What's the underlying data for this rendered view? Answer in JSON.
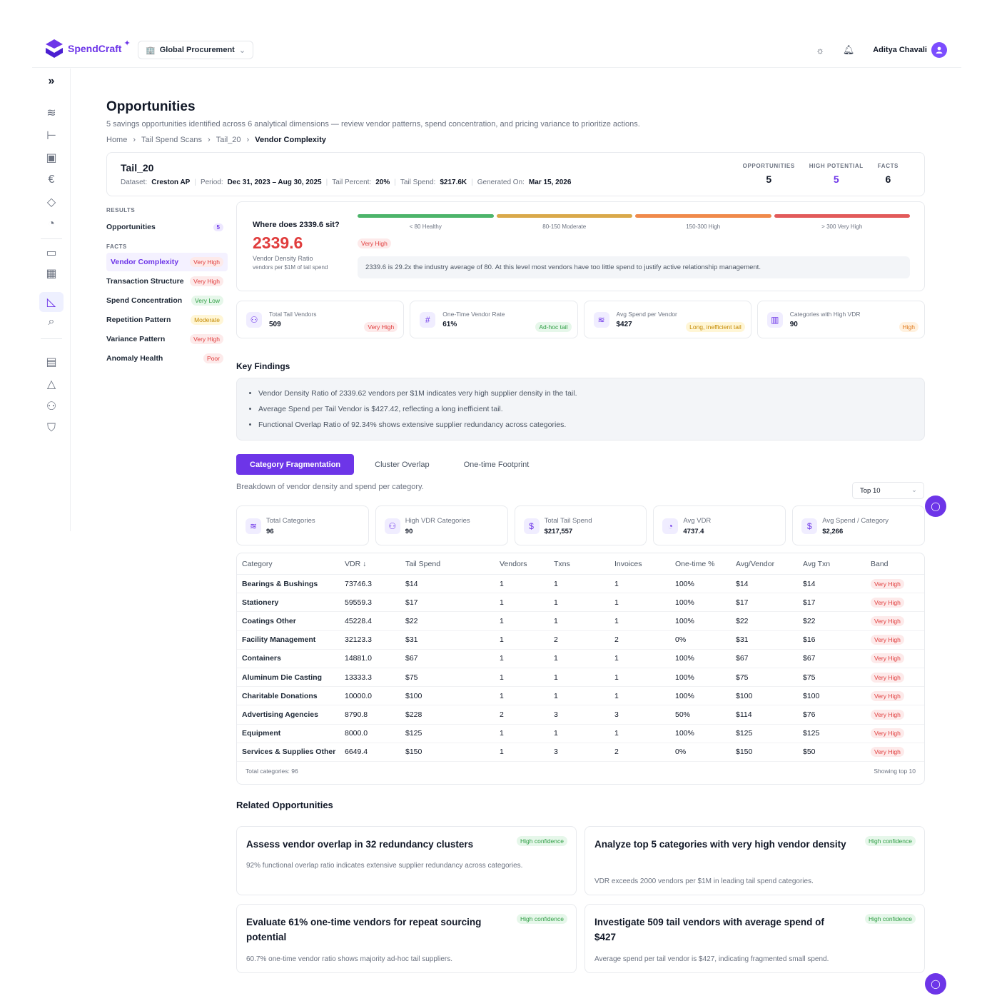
{
  "app": {
    "name": "SpendCraft",
    "workspace": "Global Procurement",
    "user": "Aditya Chavali"
  },
  "page": {
    "title": "Opportunities",
    "subtitle": "5 savings opportunities identified across 6 analytical dimensions — review vendor patterns, spend concentration, and pricing variance to prioritize actions.",
    "breadcrumbs": [
      "Home",
      "Tail Spend Scans",
      "Tail_20",
      "Vendor Complexity"
    ]
  },
  "scan": {
    "name": "Tail_20",
    "meta": [
      {
        "label": "Dataset:",
        "value": "Creston AP"
      },
      {
        "label": "Period:",
        "value": "Dec 31, 2023 – Aug 30, 2025"
      },
      {
        "label": "Tail Percent:",
        "value": "20%"
      },
      {
        "label": "Tail Spend:",
        "value": "$217.6K"
      },
      {
        "label": "Generated On:",
        "value": "Mar 15, 2026"
      }
    ],
    "stats": [
      {
        "label": "OPPORTUNITIES",
        "value": "5",
        "color": "#111827"
      },
      {
        "label": "HIGH POTENTIAL",
        "value": "5",
        "color": "#6d35e8"
      },
      {
        "label": "FACTS",
        "value": "6",
        "color": "#111827"
      }
    ]
  },
  "nav": {
    "results_label": "RESULTS",
    "results": [
      {
        "label": "Opportunities",
        "count": "5"
      }
    ],
    "facts_label": "FACTS",
    "facts": [
      {
        "label": "Vendor Complexity",
        "badge": "Very High",
        "tone": "red",
        "active": true
      },
      {
        "label": "Transaction Structure",
        "badge": "Very High",
        "tone": "red"
      },
      {
        "label": "Spend Concentration",
        "badge": "Very Low",
        "tone": "green"
      },
      {
        "label": "Repetition Pattern",
        "badge": "Moderate",
        "tone": "yellow"
      },
      {
        "label": "Variance Pattern",
        "badge": "Very High",
        "tone": "red"
      },
      {
        "label": "Anomaly Health",
        "badge": "Poor",
        "tone": "red"
      }
    ]
  },
  "vdr": {
    "question": "Where does 2339.6 sit?",
    "value": "2339.6",
    "label": "Vendor Density Ratio",
    "sublabel": "vendors per $1M of tail spend",
    "badge": "Very High",
    "bands": [
      {
        "label": "< 80 Healthy",
        "color": "#4cb46a"
      },
      {
        "label": "80-150 Moderate",
        "color": "#d9a94a"
      },
      {
        "label": "150-300 High",
        "color": "#f08a4b"
      },
      {
        "label": "> 300 Very High",
        "color": "#e25a5a"
      }
    ],
    "note": "2339.6 is 29.2x the industry average of 80. At this level most vendors have too little spend to justify active relationship management."
  },
  "kpis": [
    {
      "icon": "users-icon",
      "glyph": "👥",
      "label": "Total Tail Vendors",
      "value": "509",
      "badge": "Very High",
      "tone": "red"
    },
    {
      "icon": "hash-icon",
      "glyph": "#",
      "label": "One-Time Vendor Rate",
      "value": "61%",
      "badge": "Ad-hoc tail",
      "tone": "green"
    },
    {
      "icon": "layers-icon",
      "glyph": "≋",
      "label": "Avg Spend per Vendor",
      "value": "$427",
      "badge": "Long, inefficient tail",
      "tone": "yellow"
    },
    {
      "icon": "bar-chart-icon",
      "glyph": "▥",
      "label": "Categories with High VDR",
      "value": "90",
      "badge": "High",
      "tone": "yellow"
    }
  ],
  "key_findings": {
    "title": "Key Findings",
    "items": [
      "Vendor Density Ratio of 2339.62 vendors per $1M indicates very high supplier density in the tail.",
      "Average Spend per Tail Vendor is $427.42, reflecting a long inefficient tail.",
      "Functional Overlap Ratio of 92.34% shows extensive supplier redundancy across categories."
    ]
  },
  "tabs": [
    "Category Fragmentation",
    "Cluster Overlap",
    "One-time Footprint"
  ],
  "tab_description": "Breakdown of vendor density and spend per category.",
  "top_select": "Top 10",
  "summary_cards": [
    {
      "icon": "layers-icon",
      "glyph": "≋",
      "label": "Total Categories",
      "value": "96"
    },
    {
      "icon": "users-icon",
      "glyph": "👥",
      "label": "High VDR Categories",
      "value": "90"
    },
    {
      "icon": "dollar-icon",
      "glyph": "$",
      "label": "Total Tail Spend",
      "value": "$217,557"
    },
    {
      "icon": "gauge-icon",
      "glyph": "◔",
      "label": "Avg VDR",
      "value": "4737.4"
    },
    {
      "icon": "dollar-icon",
      "glyph": "$",
      "label": "Avg Spend / Category",
      "value": "$2,266"
    }
  ],
  "table": {
    "headers": [
      "Category",
      "VDR ↓",
      "Tail Spend",
      "Vendors",
      "Txns",
      "Invoices",
      "One-time %",
      "Avg/Vendor",
      "Avg Txn",
      "Band"
    ],
    "rows": [
      [
        "Bearings & Bushings",
        "73746.3",
        "$14",
        "1",
        "1",
        "1",
        "100%",
        "$14",
        "$14",
        "Very High"
      ],
      [
        "Stationery",
        "59559.3",
        "$17",
        "1",
        "1",
        "1",
        "100%",
        "$17",
        "$17",
        "Very High"
      ],
      [
        "Coatings Other",
        "45228.4",
        "$22",
        "1",
        "1",
        "1",
        "100%",
        "$22",
        "$22",
        "Very High"
      ],
      [
        "Facility Management",
        "32123.3",
        "$31",
        "1",
        "2",
        "2",
        "0%",
        "$31",
        "$16",
        "Very High"
      ],
      [
        "Containers",
        "14881.0",
        "$67",
        "1",
        "1",
        "1",
        "100%",
        "$67",
        "$67",
        "Very High"
      ],
      [
        "Aluminum Die Casting",
        "13333.3",
        "$75",
        "1",
        "1",
        "1",
        "100%",
        "$75",
        "$75",
        "Very High"
      ],
      [
        "Charitable Donations",
        "10000.0",
        "$100",
        "1",
        "1",
        "1",
        "100%",
        "$100",
        "$100",
        "Very High"
      ],
      [
        "Advertising Agencies",
        "8790.8",
        "$228",
        "2",
        "3",
        "3",
        "50%",
        "$114",
        "$76",
        "Very High"
      ],
      [
        "Equipment",
        "8000.0",
        "$125",
        "1",
        "1",
        "1",
        "100%",
        "$125",
        "$125",
        "Very High"
      ],
      [
        "Services & Supplies Other",
        "6649.4",
        "$150",
        "1",
        "3",
        "2",
        "0%",
        "$150",
        "$50",
        "Very High"
      ]
    ],
    "footer_left": "Total categories: 96",
    "footer_right": "Showing top 10"
  },
  "related": {
    "title": "Related Opportunities",
    "items": [
      {
        "title": "Assess vendor overlap in 32 redundancy clusters",
        "badge": "High confidence",
        "desc": "92% functional overlap ratio indicates extensive supplier redundancy across categories."
      },
      {
        "title": "Analyze top 5 categories with very high vendor density",
        "badge": "High confidence",
        "desc": "VDR exceeds 2000 vendors per $1M in leading tail spend categories."
      },
      {
        "title": "Evaluate 61% one-time vendors for repeat sourcing potential",
        "badge": "High confidence",
        "desc": "60.7% one-time vendor ratio shows majority ad-hoc tail suppliers."
      },
      {
        "title": "Investigate 509 tail vendors with average spend of $427",
        "badge": "High confidence",
        "desc": "Average spend per tail vendor is $427, indicating fragmented small spend."
      }
    ]
  }
}
